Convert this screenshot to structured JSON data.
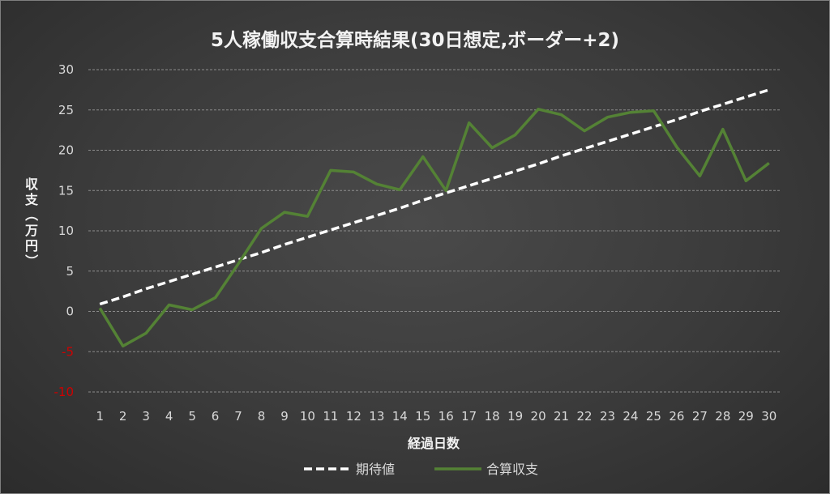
{
  "chart_data": {
    "type": "line",
    "title": "5人稼働収支合算時結果(30日想定,ボーダー+2)",
    "xlabel": "経過日数",
    "ylabel": "収支（万円）",
    "ylim": [
      -10,
      30
    ],
    "ytick_step": 5,
    "grid": true,
    "legend_position": "bottom",
    "negative_tick_color": "#d00000",
    "x": [
      1,
      2,
      3,
      4,
      5,
      6,
      7,
      8,
      9,
      10,
      11,
      12,
      13,
      14,
      15,
      16,
      17,
      18,
      19,
      20,
      21,
      22,
      23,
      24,
      25,
      26,
      27,
      28,
      29,
      30
    ],
    "series": [
      {
        "name": "期待値",
        "style": "dashed",
        "color": "#ffffff",
        "values": [
          0.9,
          1.8,
          2.8,
          3.7,
          4.6,
          5.5,
          6.4,
          7.3,
          8.3,
          9.2,
          10.1,
          11.0,
          11.9,
          12.8,
          13.8,
          14.7,
          15.6,
          16.5,
          17.4,
          18.3,
          19.3,
          20.2,
          21.1,
          22.0,
          22.9,
          23.8,
          24.8,
          25.7,
          26.6,
          27.5
        ]
      },
      {
        "name": "合算収支",
        "style": "solid",
        "color": "#548235",
        "values": [
          0.4,
          -4.3,
          -2.7,
          0.8,
          0.2,
          1.7,
          5.9,
          10.3,
          12.3,
          11.8,
          17.5,
          17.3,
          15.8,
          15.1,
          19.2,
          15.0,
          23.4,
          20.3,
          21.9,
          25.1,
          24.4,
          22.4,
          24.1,
          24.7,
          24.9,
          20.4,
          16.8,
          22.6,
          16.2,
          18.4
        ]
      }
    ]
  }
}
